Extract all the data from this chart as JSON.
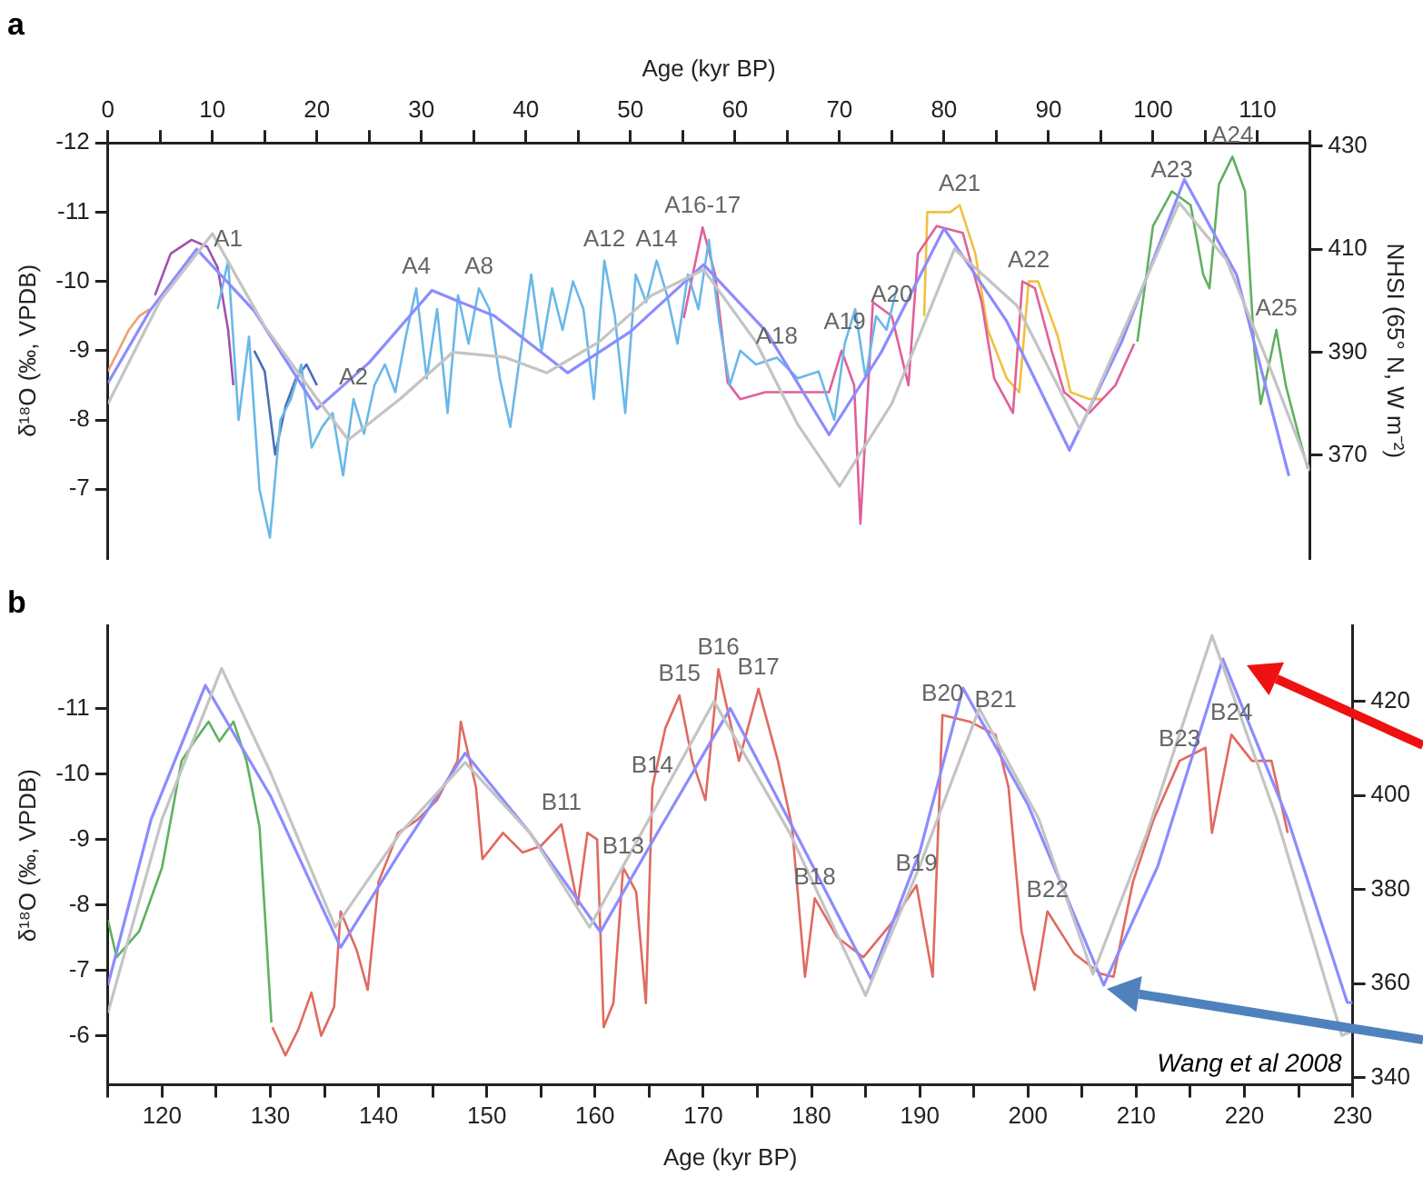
{
  "chart_data": [
    {
      "type": "line",
      "title": "a",
      "xlabel": "Age (kyr BP)",
      "ylabel": "δ¹⁸O (‰, VPDB)",
      "y2label": "NHSI (65° N, W m⁻²)",
      "xlim": [
        0,
        115
      ],
      "xticks": [
        0,
        {
          "value": 5,
          "label": null
        },
        10,
        {
          "value": 15,
          "label": null
        },
        20,
        {
          "value": 25,
          "label": null
        },
        30,
        {
          "value": 35,
          "label": null
        },
        40,
        {
          "value": 45,
          "label": null
        },
        50,
        {
          "value": 55,
          "label": null
        },
        60,
        {
          "value": 65,
          "label": null
        },
        70,
        {
          "value": 75,
          "label": null
        },
        80,
        {
          "value": 85,
          "label": null
        },
        90,
        {
          "value": 95,
          "label": null
        },
        100,
        {
          "value": 105,
          "label": null
        },
        110,
        {
          "value": 115,
          "label": null
        }
      ],
      "ylim": [
        -6,
        -12
      ],
      "yticks": [
        -12,
        -11,
        -10,
        -9,
        -8,
        -7
      ],
      "y2lim": [
        350,
        430.6
      ],
      "y2ticks": [
        370,
        390,
        410,
        430
      ],
      "grid": false,
      "legend": false,
      "marker": "none",
      "series": [
        {
          "color": "#c4c4c4",
          "axis": "y2",
          "x": [
            0,
            5,
            10,
            15,
            20,
            23,
            28,
            33,
            38,
            42,
            47,
            52,
            57,
            62,
            66,
            70,
            75,
            81,
            87,
            93,
            98,
            102.5,
            107,
            111,
            115
          ],
          "values": [
            380,
            400,
            413,
            395,
            381,
            373,
            381,
            390,
            389,
            386,
            392,
            401,
            406,
            392,
            376,
            364,
            380,
            410,
            399,
            375,
            398,
            419,
            408,
            388,
            367
          ]
        },
        {
          "color": "#8c8cff",
          "axis": "y2",
          "x": [
            0,
            4,
            8.5,
            14,
            20,
            25,
            31,
            37,
            44,
            50,
            57,
            63,
            69,
            74,
            80,
            86,
            92,
            97,
            103,
            108,
            113
          ],
          "values": [
            384,
            398,
            410,
            398,
            379,
            388,
            402,
            397,
            386,
            394,
            407,
            394,
            374,
            390,
            414,
            396,
            371,
            392,
            423.5,
            405,
            366
          ]
        },
        {
          "color": "#6ab8e8",
          "x": [
            10.5,
            11.5,
            12.5,
            13.5,
            14.5,
            15.5,
            16.5,
            17.5,
            18.5,
            19.5,
            20.5,
            21.5,
            22.5,
            23.5,
            24.5,
            25.5,
            26.5,
            27.5,
            28.5,
            29.5,
            30.5,
            31.5,
            32.5,
            33.5,
            34.5,
            35.5,
            36.5,
            37.5,
            38.5,
            39.5,
            40.5,
            41.5,
            42.5,
            43.5,
            44.5,
            45.5,
            46.5,
            47.5,
            48.5,
            49.5,
            50.5,
            51.5,
            52.5,
            53.5,
            54.5,
            55.5,
            56.5,
            57.5,
            58.5,
            59.5,
            60.5,
            62,
            64,
            66,
            68,
            69.5,
            70.5,
            71.5,
            72.5,
            73.5,
            74.5,
            75.5
          ],
          "values": [
            -9.6,
            -10.3,
            -8.0,
            -9.2,
            -7.0,
            -6.3,
            -8.0,
            -8.3,
            -8.8,
            -7.6,
            -7.9,
            -8.1,
            -7.2,
            -8.3,
            -7.8,
            -8.5,
            -8.8,
            -8.4,
            -9.2,
            -9.9,
            -8.6,
            -9.6,
            -8.1,
            -9.8,
            -9.1,
            -9.9,
            -9.6,
            -8.6,
            -7.9,
            -9.0,
            -10.1,
            -9.0,
            -9.9,
            -9.3,
            -10.0,
            -9.6,
            -8.3,
            -10.3,
            -9.5,
            -8.1,
            -10.1,
            -9.7,
            -10.3,
            -9.8,
            -9.1,
            -10.1,
            -9.6,
            -10.6,
            -9.4,
            -8.5,
            -9.0,
            -8.8,
            -8.9,
            -8.6,
            -8.7,
            -8.0,
            -9.1,
            -9.6,
            -8.6,
            -9.5,
            -9.3,
            -9.9
          ]
        },
        {
          "color": "#4a6fb5",
          "x": [
            14,
            15,
            16,
            17,
            18,
            19,
            20
          ],
          "values": [
            -9.0,
            -8.7,
            -7.5,
            -8.2,
            -8.6,
            -8.8,
            -8.5
          ]
        },
        {
          "color": "#f0a070",
          "x": [
            0,
            1,
            2,
            3,
            4
          ],
          "values": [
            -8.7,
            -9.0,
            -9.3,
            -9.5,
            -9.6
          ]
        },
        {
          "color": "#a050b0",
          "x": [
            4.5,
            6,
            8,
            9.5,
            10.5,
            11.5,
            12
          ],
          "values": [
            -9.8,
            -10.4,
            -10.6,
            -10.5,
            -10.2,
            -9.3,
            -8.5
          ]
        },
        {
          "color": "#e0609a",
          "x": [
            55.1,
            56.9,
            58.1,
            59.3,
            60.5,
            62.9,
            66,
            69,
            70.2,
            71.4,
            72,
            73.2,
            75,
            76.6,
            77.5,
            79.3,
            81.8,
            83.6,
            84.8,
            86.6,
            87.5,
            88.7,
            90.3,
            91.5,
            93.9,
            96.4,
            98.2
          ],
          "values": [
            -9.47,
            -10.78,
            -10.1,
            -8.54,
            -8.3,
            -8.4,
            -8.4,
            -8.4,
            -9.0,
            -8.5,
            -6.5,
            -9.7,
            -9.5,
            -8.5,
            -10.4,
            -10.8,
            -10.7,
            -9.7,
            -8.6,
            -8.1,
            -10.0,
            -9.9,
            -9.0,
            -8.4,
            -8.1,
            -8.5,
            -9.1
          ]
        },
        {
          "color": "#f0c040",
          "x": [
            78.1,
            78.4,
            80.6,
            81.5,
            83,
            84.2,
            86,
            87.2,
            88.1,
            89,
            90.9,
            92.1,
            93.9,
            95.1
          ],
          "values": [
            -9.5,
            -11.0,
            -11.0,
            -11.1,
            -10.4,
            -9.3,
            -8.6,
            -8.4,
            -10.0,
            -10.0,
            -9.2,
            -8.4,
            -8.3,
            -8.3
          ]
        },
        {
          "color": "#60b060",
          "x": [
            98.5,
            100,
            101.8,
            103.6,
            104.8,
            105.4,
            106.3,
            107.6,
            108.8,
            109.7,
            110.3,
            111.8,
            112.7,
            113.9,
            114.8
          ],
          "values": [
            -9.13,
            -10.8,
            -11.3,
            -11.1,
            -10.1,
            -9.9,
            -11.4,
            -11.8,
            -11.3,
            -9.0,
            -8.23,
            -9.3,
            -8.5,
            -7.8,
            -7.3
          ]
        }
      ],
      "annotations": [
        {
          "text": "A1",
          "x": 11.5,
          "y": -10.3
        },
        {
          "text": "A2",
          "x": 23.5,
          "y": -8.3
        },
        {
          "text": "A4",
          "x": 29.5,
          "y": -9.9
        },
        {
          "text": "A8",
          "x": 35.5,
          "y": -9.9
        },
        {
          "text": "A12",
          "x": 47.5,
          "y": -10.3
        },
        {
          "text": "A14",
          "x": 52.5,
          "y": -10.3
        },
        {
          "text": "A16-17",
          "x": 56.9,
          "y": -10.78
        },
        {
          "text": "A18",
          "x": 64,
          "y": -8.9
        },
        {
          "text": "A19",
          "x": 70.5,
          "y": -9.1
        },
        {
          "text": "A20",
          "x": 75,
          "y": -9.5
        },
        {
          "text": "A21",
          "x": 81.5,
          "y": -11.1
        },
        {
          "text": "A22",
          "x": 88.1,
          "y": -10.0
        },
        {
          "text": "A23",
          "x": 101.8,
          "y": -11.3
        },
        {
          "text": "A24",
          "x": 107.6,
          "y": -11.8
        },
        {
          "text": "A25",
          "x": 111.8,
          "y": -9.3
        }
      ]
    },
    {
      "type": "line",
      "title": "b",
      "xlabel": "Age (kyr BP)",
      "ylabel": "δ¹⁸O (‰, VPDB)",
      "xlim": [
        115,
        230
      ],
      "xticks": [
        {
          "value": 115,
          "label": null
        },
        120,
        {
          "value": 125,
          "label": null
        },
        130,
        {
          "value": 135,
          "label": null
        },
        140,
        {
          "value": 145,
          "label": null
        },
        150,
        {
          "value": 155,
          "label": null
        },
        160,
        {
          "value": 165,
          "label": null
        },
        170,
        {
          "value": 175,
          "label": null
        },
        180,
        {
          "value": 185,
          "label": null
        },
        190,
        {
          "value": 195,
          "label": null
        },
        200,
        {
          "value": 205,
          "label": null
        },
        210,
        {
          "value": 215,
          "label": null
        },
        220,
        {
          "value": 225,
          "label": null
        },
        230
      ],
      "ylim": [
        -5.25,
        -12.26
      ],
      "yticks": [
        -11,
        -10,
        -9,
        -8,
        -7,
        -6
      ],
      "y2lim": [
        338.5,
        436
      ],
      "y2ticks": [
        340,
        360,
        380,
        400,
        420
      ],
      "grid": false,
      "legend": false,
      "marker": "none",
      "series": [
        {
          "color": "#c4c4c4",
          "axis": "y2",
          "x": [
            115,
            120,
            125.5,
            130,
            136,
            142,
            148,
            154,
            159.5,
            165,
            171,
            178,
            185,
            190,
            195.5,
            201,
            206,
            211,
            217,
            223,
            229,
            230
          ],
          "values": [
            353.8,
            395,
            427,
            405,
            372,
            392,
            407,
            392,
            372,
            395,
            420,
            392,
            357.5,
            385,
            418.5,
            395,
            362,
            392,
            434,
            395,
            349,
            350
          ]
        },
        {
          "color": "#8c8cff",
          "axis": "y2",
          "x": [
            115,
            119,
            124,
            130,
            136.5,
            142,
            148,
            154,
            160.5,
            166,
            172.5,
            179,
            185.5,
            190,
            194,
            200,
            207,
            212,
            218,
            224,
            229.5,
            230
          ],
          "values": [
            359.7,
            395,
            423.4,
            400,
            367.7,
            388,
            409,
            392,
            371,
            393,
            418.5,
            390,
            361,
            388,
            422.8,
            398,
            359.7,
            385,
            429,
            395,
            356,
            356
          ]
        },
        {
          "color": "#60b060",
          "x": [
            115,
            115.8,
            117.9,
            120,
            121.8,
            123,
            124.3,
            125.3,
            126.6,
            127.8,
            129,
            129.6,
            130.1
          ],
          "values": [
            -7.77,
            -7.2,
            -7.6,
            -8.57,
            -10.2,
            -10.5,
            -10.8,
            -10.5,
            -10.8,
            -10.2,
            -9.2,
            -7.6,
            -6.2
          ]
        },
        {
          "color": "#e06a60",
          "x": [
            130.2,
            131.4,
            132.6,
            133.8,
            134.7,
            135.9,
            136.5,
            138,
            139,
            140,
            141.8,
            143.6,
            145.4,
            147.3,
            147.6,
            149,
            149.6,
            151.5,
            153.3,
            155,
            156.9,
            158.4,
            159.3,
            160.2,
            160.8,
            161.7,
            162.6,
            163.8,
            164.7,
            165.3,
            166.5,
            167.8,
            169,
            170.2,
            171.4,
            173.3,
            175.1,
            176.9,
            178.2,
            179.4,
            180.3,
            182.4,
            184.8,
            187.3,
            189.7,
            191.2,
            192.1,
            194.6,
            197,
            198.2,
            199.4,
            200.6,
            201.8,
            204.3,
            206.7,
            207.9,
            209.7,
            211.6,
            214,
            216.4,
            217,
            218.8,
            220.7,
            222.5,
            224
          ],
          "values": [
            -6.13,
            -5.7,
            -6.1,
            -6.66,
            -6.0,
            -6.44,
            -7.9,
            -7.3,
            -6.7,
            -8.35,
            -9.1,
            -9.3,
            -9.6,
            -10.2,
            -10.8,
            -9.8,
            -8.7,
            -9.1,
            -8.8,
            -8.9,
            -9.23,
            -8.0,
            -9.1,
            -9.0,
            -6.13,
            -6.5,
            -8.57,
            -8.2,
            -6.5,
            -9.8,
            -10.7,
            -11.2,
            -10.2,
            -9.6,
            -11.6,
            -10.2,
            -11.3,
            -10.2,
            -9.2,
            -6.9,
            -8.1,
            -7.5,
            -7.2,
            -7.7,
            -8.3,
            -6.9,
            -10.9,
            -10.8,
            -10.6,
            -9.8,
            -7.6,
            -6.7,
            -7.9,
            -7.25,
            -6.95,
            -6.9,
            -8.35,
            -9.3,
            -10.2,
            -10.4,
            -9.1,
            -10.6,
            -10.2,
            -10.2,
            -9.1
          ]
        }
      ],
      "annotations": [
        {
          "text": "B11",
          "x": 156.9,
          "y": -9.23
        },
        {
          "text": "B13",
          "x": 162.6,
          "y": -8.57
        },
        {
          "text": "B14",
          "x": 165.3,
          "y": -9.8
        },
        {
          "text": "B15",
          "x": 167.8,
          "y": -11.2
        },
        {
          "text": "B16",
          "x": 171.4,
          "y": -11.6
        },
        {
          "text": "B17",
          "x": 175.1,
          "y": -11.3
        },
        {
          "text": "B18",
          "x": 180.3,
          "y": -8.1
        },
        {
          "text": "B19",
          "x": 189.7,
          "y": -8.3
        },
        {
          "text": "B20",
          "x": 192.1,
          "y": -10.9
        },
        {
          "text": "B21",
          "x": 197,
          "y": -10.8
        },
        {
          "text": "B22",
          "x": 201.8,
          "y": -7.9
        },
        {
          "text": "B23",
          "x": 214,
          "y": -10.2
        },
        {
          "text": "B24",
          "x": 218.8,
          "y": -10.6
        },
        "Wang et al 2008"
      ]
    }
  ]
}
